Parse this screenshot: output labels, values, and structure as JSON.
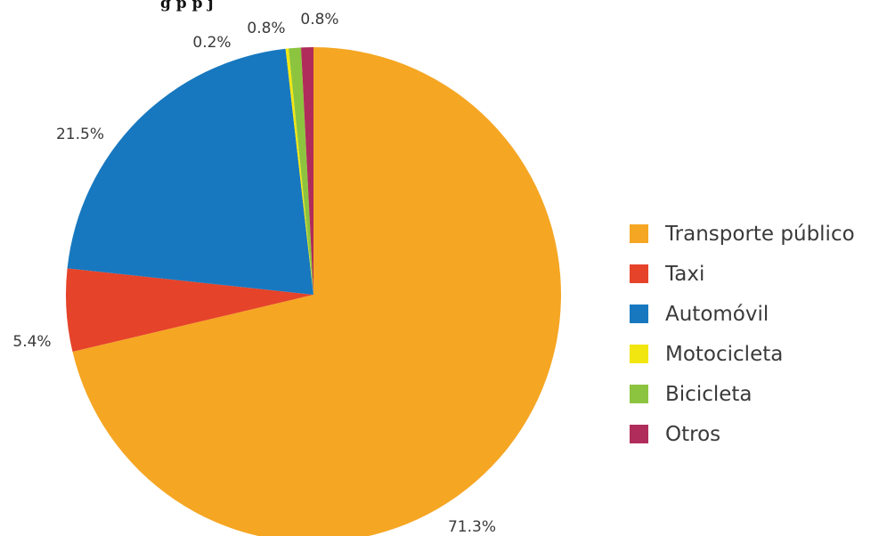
{
  "header": {
    "title_fragment": "g                          p                          p                                             j"
  },
  "chart_data": {
    "type": "pie",
    "legend_position": "right",
    "slices": [
      {
        "name": "Transporte público",
        "value": 71.3,
        "label": "71.3%",
        "color": "#f5a623"
      },
      {
        "name": "Taxi",
        "value": 5.4,
        "label": "5.4%",
        "color": "#e5432a"
      },
      {
        "name": "Automóvil",
        "value": 21.5,
        "label": "21.5%",
        "color": "#1778bf"
      },
      {
        "name": "Motocicleta",
        "value": 0.2,
        "label": "0.2%",
        "color": "#f2e611"
      },
      {
        "name": "Bicicleta",
        "value": 0.8,
        "label": "0.8%",
        "color": "#8dc43f"
      },
      {
        "name": "Otros",
        "value": 0.8,
        "label": "0.8%",
        "color": "#b02c5a"
      }
    ]
  }
}
